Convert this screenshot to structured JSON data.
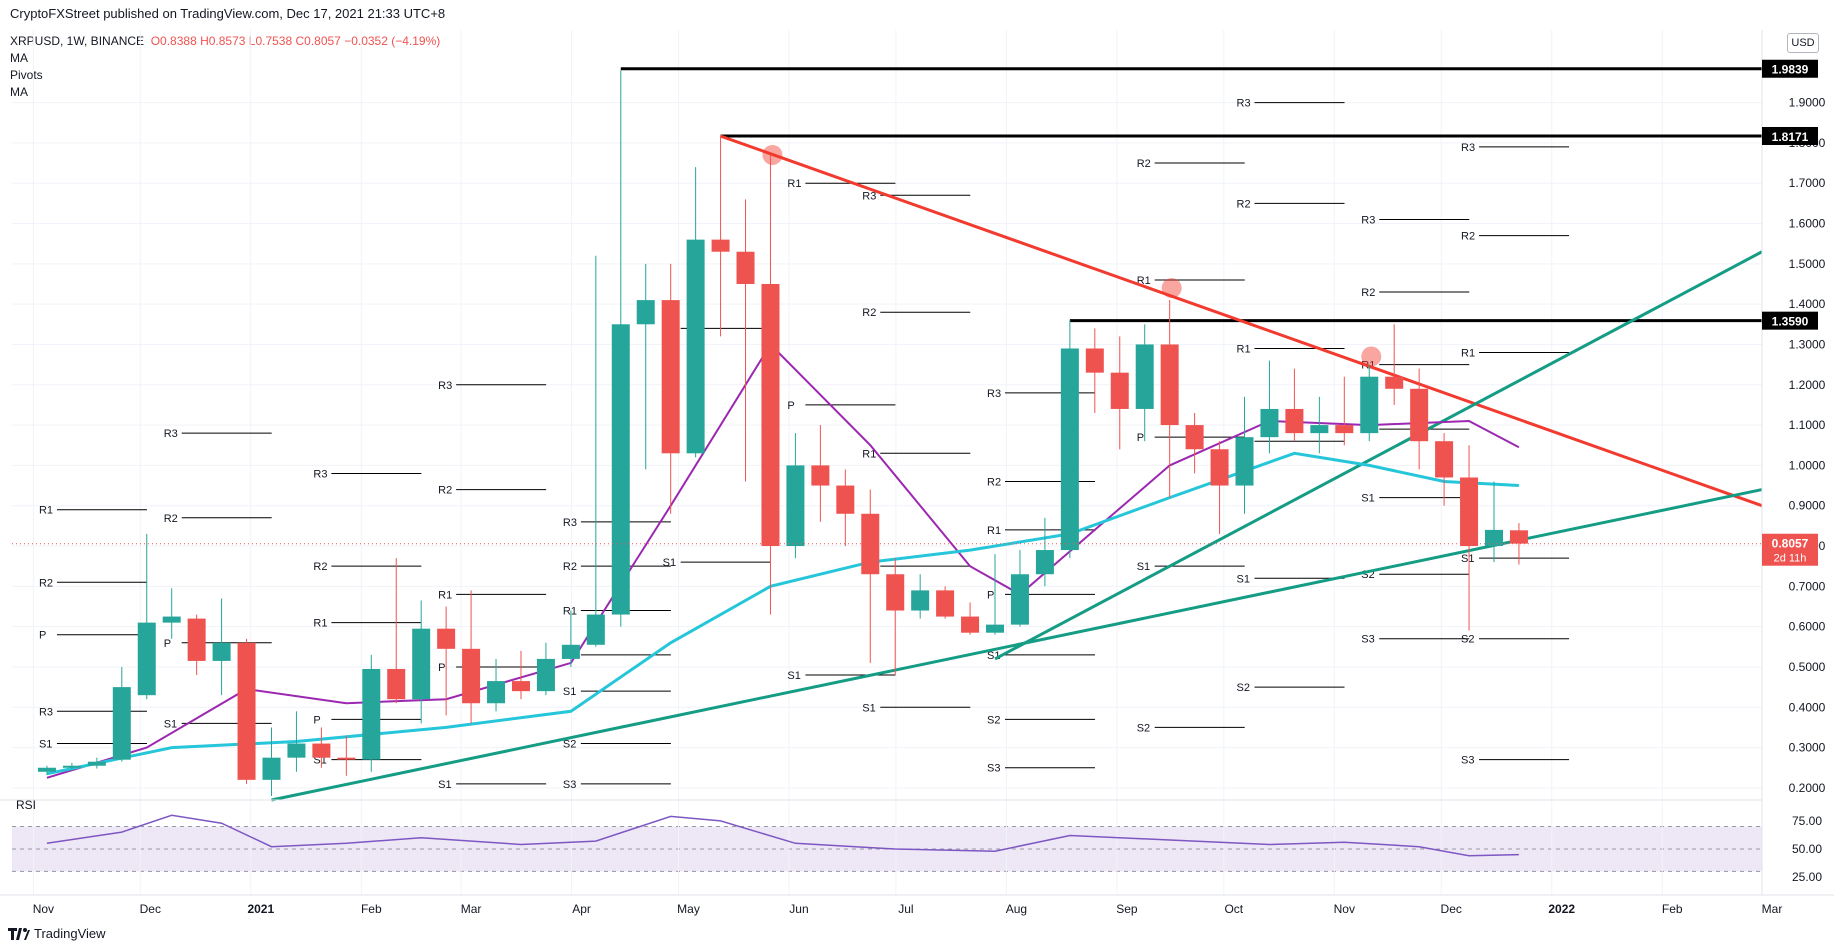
{
  "header": {
    "published": "CryptoFXStreet published on TradingView.com, Dec 17, 2021 21:33 UTC+8",
    "currency_button": "USD"
  },
  "legend": {
    "symbol": "XRPUSD, 1W, BINANCE",
    "ohlc": "O0.8388 H0.8573 L0.7538 C0.8057 −0.0352 (−4.19%)",
    "lines": [
      "MA",
      "Pivots",
      "MA"
    ]
  },
  "rsi": {
    "label": "RSI"
  },
  "footer": {
    "brand": "TradingView"
  },
  "colors": {
    "bull": "#26a69a",
    "bear": "#ef5350",
    "ma_fast": "#9c27b0",
    "ma_slow": "#26c6da",
    "trend_red": "#f23a2e",
    "trend_green": "#149c84",
    "rsi_line": "#7e57c2",
    "rsi_band": "#ede7f6",
    "resistance": "#000000"
  },
  "chart_data": [
    {
      "type": "candlestick",
      "symbol": "XRPUSD",
      "timeframe": "1W",
      "exchange": "BINANCE",
      "ylim": [
        0.17,
        2.08
      ],
      "yticks": [
        "0.2000",
        "0.3000",
        "0.4000",
        "0.5000",
        "0.6000",
        "0.7000",
        "0.8000",
        "0.9000",
        "1.0000",
        "1.1000",
        "1.2000",
        "1.3000",
        "1.4000",
        "1.5000",
        "1.6000",
        "1.7000",
        "1.8000",
        "1.9000"
      ],
      "xticks": [
        "Nov",
        "Dec",
        "2021",
        "Feb",
        "Mar",
        "Apr",
        "May",
        "Jun",
        "Jul",
        "Aug",
        "Sep",
        "Oct",
        "Nov",
        "Dec",
        "2022",
        "Feb",
        "Mar"
      ],
      "candles": [
        {
          "t": "2020-11-02",
          "o": 0.24,
          "h": 0.255,
          "l": 0.232,
          "c": 0.25
        },
        {
          "t": "2020-11-09",
          "o": 0.25,
          "h": 0.262,
          "l": 0.242,
          "c": 0.255
        },
        {
          "t": "2020-11-16",
          "o": 0.255,
          "h": 0.275,
          "l": 0.248,
          "c": 0.265
        },
        {
          "t": "2020-11-23",
          "o": 0.27,
          "h": 0.5,
          "l": 0.265,
          "c": 0.45
        },
        {
          "t": "2020-11-30",
          "o": 0.43,
          "h": 0.83,
          "l": 0.42,
          "c": 0.61
        },
        {
          "t": "2020-12-07",
          "o": 0.61,
          "h": 0.695,
          "l": 0.57,
          "c": 0.625
        },
        {
          "t": "2020-12-14",
          "o": 0.62,
          "h": 0.63,
          "l": 0.48,
          "c": 0.515
        },
        {
          "t": "2020-12-21",
          "o": 0.515,
          "h": 0.67,
          "l": 0.43,
          "c": 0.56
        },
        {
          "t": "2020-12-28",
          "o": 0.56,
          "h": 0.57,
          "l": 0.21,
          "c": 0.22
        },
        {
          "t": "2021-01-04",
          "o": 0.22,
          "h": 0.35,
          "l": 0.18,
          "c": 0.275
        },
        {
          "t": "2021-01-11",
          "o": 0.275,
          "h": 0.39,
          "l": 0.24,
          "c": 0.31
        },
        {
          "t": "2021-01-18",
          "o": 0.31,
          "h": 0.35,
          "l": 0.25,
          "c": 0.275
        },
        {
          "t": "2021-01-25",
          "o": 0.275,
          "h": 0.33,
          "l": 0.23,
          "c": 0.27
        },
        {
          "t": "2021-02-01",
          "o": 0.27,
          "h": 0.53,
          "l": 0.24,
          "c": 0.495
        },
        {
          "t": "2021-02-08",
          "o": 0.495,
          "h": 0.77,
          "l": 0.41,
          "c": 0.42
        },
        {
          "t": "2021-02-15",
          "o": 0.42,
          "h": 0.665,
          "l": 0.36,
          "c": 0.595
        },
        {
          "t": "2021-02-22",
          "o": 0.595,
          "h": 0.65,
          "l": 0.38,
          "c": 0.545
        },
        {
          "t": "2021-03-01",
          "o": 0.545,
          "h": 0.69,
          "l": 0.36,
          "c": 0.41
        },
        {
          "t": "2021-03-08",
          "o": 0.41,
          "h": 0.52,
          "l": 0.39,
          "c": 0.465
        },
        {
          "t": "2021-03-15",
          "o": 0.465,
          "h": 0.54,
          "l": 0.42,
          "c": 0.44
        },
        {
          "t": "2021-03-22",
          "o": 0.44,
          "h": 0.56,
          "l": 0.43,
          "c": 0.52
        },
        {
          "t": "2021-03-29",
          "o": 0.52,
          "h": 0.64,
          "l": 0.5,
          "c": 0.555
        },
        {
          "t": "2021-04-05",
          "o": 0.555,
          "h": 1.52,
          "l": 0.55,
          "c": 0.63
        },
        {
          "t": "2021-04-12",
          "o": 0.63,
          "h": 1.98,
          "l": 0.6,
          "c": 1.35
        },
        {
          "t": "2021-04-19",
          "o": 1.35,
          "h": 1.5,
          "l": 0.99,
          "c": 1.41
        },
        {
          "t": "2021-04-26",
          "o": 1.41,
          "h": 1.5,
          "l": 0.88,
          "c": 1.03
        },
        {
          "t": "2021-05-03",
          "o": 1.03,
          "h": 1.74,
          "l": 1.02,
          "c": 1.56
        },
        {
          "t": "2021-05-10",
          "o": 1.56,
          "h": 1.817,
          "l": 1.32,
          "c": 1.53
        },
        {
          "t": "2021-05-17",
          "o": 1.53,
          "h": 1.66,
          "l": 0.96,
          "c": 1.45
        },
        {
          "t": "2021-05-24",
          "o": 1.45,
          "h": 1.77,
          "l": 0.63,
          "c": 0.8
        },
        {
          "t": "2021-05-31",
          "o": 0.8,
          "h": 1.08,
          "l": 0.77,
          "c": 1.0
        },
        {
          "t": "2021-06-07",
          "o": 1.0,
          "h": 1.1,
          "l": 0.86,
          "c": 0.95
        },
        {
          "t": "2021-06-14",
          "o": 0.95,
          "h": 0.99,
          "l": 0.8,
          "c": 0.88
        },
        {
          "t": "2021-06-21",
          "o": 0.88,
          "h": 0.94,
          "l": 0.51,
          "c": 0.73
        },
        {
          "t": "2021-06-28",
          "o": 0.73,
          "h": 0.77,
          "l": 0.48,
          "c": 0.64
        },
        {
          "t": "2021-07-05",
          "o": 0.64,
          "h": 0.73,
          "l": 0.62,
          "c": 0.69
        },
        {
          "t": "2021-07-12",
          "o": 0.69,
          "h": 0.7,
          "l": 0.62,
          "c": 0.625
        },
        {
          "t": "2021-07-19",
          "o": 0.625,
          "h": 0.66,
          "l": 0.58,
          "c": 0.585
        },
        {
          "t": "2021-07-26",
          "o": 0.585,
          "h": 0.78,
          "l": 0.58,
          "c": 0.605
        },
        {
          "t": "2021-08-02",
          "o": 0.605,
          "h": 0.79,
          "l": 0.6,
          "c": 0.73
        },
        {
          "t": "2021-08-09",
          "o": 0.73,
          "h": 0.87,
          "l": 0.7,
          "c": 0.79
        },
        {
          "t": "2021-08-16",
          "o": 0.79,
          "h": 1.36,
          "l": 0.77,
          "c": 1.29
        },
        {
          "t": "2021-08-23",
          "o": 1.29,
          "h": 1.34,
          "l": 1.13,
          "c": 1.23
        },
        {
          "t": "2021-08-30",
          "o": 1.23,
          "h": 1.32,
          "l": 1.04,
          "c": 1.14
        },
        {
          "t": "2021-09-06",
          "o": 1.14,
          "h": 1.35,
          "l": 1.06,
          "c": 1.3
        },
        {
          "t": "2021-09-13",
          "o": 1.3,
          "h": 1.41,
          "l": 0.92,
          "c": 1.1
        },
        {
          "t": "2021-09-20",
          "o": 1.1,
          "h": 1.13,
          "l": 0.98,
          "c": 1.04
        },
        {
          "t": "2021-09-27",
          "o": 1.04,
          "h": 1.06,
          "l": 0.83,
          "c": 0.95
        },
        {
          "t": "2021-10-04",
          "o": 0.95,
          "h": 1.17,
          "l": 0.88,
          "c": 1.07
        },
        {
          "t": "2021-10-11",
          "o": 1.07,
          "h": 1.26,
          "l": 1.03,
          "c": 1.14
        },
        {
          "t": "2021-10-18",
          "o": 1.14,
          "h": 1.24,
          "l": 1.06,
          "c": 1.08
        },
        {
          "t": "2021-10-25",
          "o": 1.08,
          "h": 1.17,
          "l": 1.03,
          "c": 1.1
        },
        {
          "t": "2021-11-01",
          "o": 1.1,
          "h": 1.22,
          "l": 1.05,
          "c": 1.08
        },
        {
          "t": "2021-11-08",
          "o": 1.08,
          "h": 1.25,
          "l": 1.06,
          "c": 1.22
        },
        {
          "t": "2021-11-15",
          "o": 1.22,
          "h": 1.35,
          "l": 1.15,
          "c": 1.19
        },
        {
          "t": "2021-11-22",
          "o": 1.19,
          "h": 1.24,
          "l": 0.99,
          "c": 1.06
        },
        {
          "t": "2021-11-29",
          "o": 1.06,
          "h": 1.08,
          "l": 0.9,
          "c": 0.97
        },
        {
          "t": "2021-12-06",
          "o": 0.97,
          "h": 1.05,
          "l": 0.59,
          "c": 0.8
        },
        {
          "t": "2021-12-13",
          "o": 0.8,
          "h": 0.96,
          "l": 0.76,
          "c": 0.84
        },
        {
          "t": "2021-12-20",
          "o": 0.839,
          "h": 0.857,
          "l": 0.754,
          "c": 0.806
        }
      ],
      "moving_averages": [
        {
          "name": "MA",
          "color": "#9c27b0",
          "points": [
            [
              "2020-11-02",
              0.225
            ],
            [
              "2020-11-30",
              0.3
            ],
            [
              "2020-12-28",
              0.445
            ],
            [
              "2021-01-25",
              0.41
            ],
            [
              "2021-02-22",
              0.42
            ],
            [
              "2021-03-29",
              0.51
            ],
            [
              "2021-04-26",
              0.9
            ],
            [
              "2021-05-24",
              1.3
            ],
            [
              "2021-06-21",
              1.05
            ],
            [
              "2021-07-19",
              0.75
            ],
            [
              "2021-08-02",
              0.68
            ],
            [
              "2021-08-23",
              0.84
            ],
            [
              "2021-09-13",
              1.0
            ],
            [
              "2021-10-11",
              1.11
            ],
            [
              "2021-11-08",
              1.1
            ],
            [
              "2021-12-06",
              1.11
            ],
            [
              "2021-12-20",
              1.045
            ]
          ]
        },
        {
          "name": "MA",
          "color": "#26c6da",
          "points": [
            [
              "2020-11-02",
              0.235
            ],
            [
              "2020-12-07",
              0.3
            ],
            [
              "2021-01-11",
              0.315
            ],
            [
              "2021-02-22",
              0.35
            ],
            [
              "2021-03-29",
              0.39
            ],
            [
              "2021-04-26",
              0.56
            ],
            [
              "2021-05-24",
              0.7
            ],
            [
              "2021-06-21",
              0.76
            ],
            [
              "2021-07-19",
              0.79
            ],
            [
              "2021-08-16",
              0.83
            ],
            [
              "2021-09-13",
              0.92
            ],
            [
              "2021-10-18",
              1.03
            ],
            [
              "2021-11-08",
              1.0
            ],
            [
              "2021-11-29",
              0.96
            ],
            [
              "2021-12-20",
              0.95
            ]
          ]
        }
      ],
      "horizontal_levels": [
        "1.9839",
        "1.8171",
        "1.3590"
      ],
      "price_label": {
        "value": "0.8057",
        "countdown": "2d 11h"
      },
      "pivot_labels": [
        "R3",
        "R2",
        "R1",
        "P",
        "S1",
        "S2",
        "S3"
      ]
    },
    {
      "type": "line",
      "name": "RSI",
      "yticks": [
        "75.00",
        "50.00",
        "25.00"
      ],
      "band": [
        30,
        70
      ],
      "points": [
        [
          "2020-11-02",
          55
        ],
        [
          "2020-11-23",
          65
        ],
        [
          "2020-12-07",
          80
        ],
        [
          "2020-12-21",
          73
        ],
        [
          "2021-01-04",
          52
        ],
        [
          "2021-01-25",
          55
        ],
        [
          "2021-02-15",
          60
        ],
        [
          "2021-03-15",
          54
        ],
        [
          "2021-04-05",
          57
        ],
        [
          "2021-04-26",
          79
        ],
        [
          "2021-05-10",
          75
        ],
        [
          "2021-05-31",
          55
        ],
        [
          "2021-06-28",
          50
        ],
        [
          "2021-07-26",
          48
        ],
        [
          "2021-08-16",
          62
        ],
        [
          "2021-09-13",
          58
        ],
        [
          "2021-10-11",
          54
        ],
        [
          "2021-11-01",
          56
        ],
        [
          "2021-11-22",
          52
        ],
        [
          "2021-12-06",
          44
        ],
        [
          "2021-12-20",
          45
        ]
      ]
    }
  ]
}
